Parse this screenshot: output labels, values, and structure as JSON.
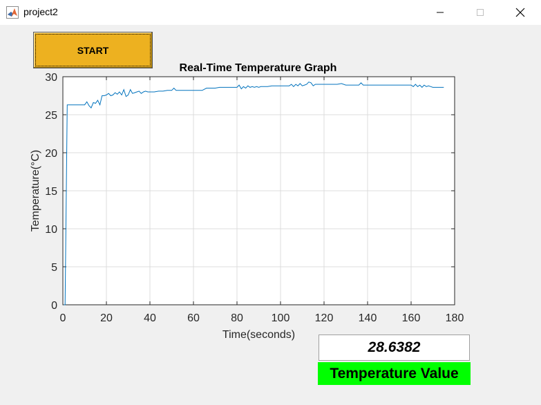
{
  "window": {
    "title": "project2"
  },
  "controls": {
    "start_label": "START"
  },
  "display": {
    "value": "28.6382",
    "label": "Temperature Value"
  },
  "colors": {
    "button": "#edb120",
    "label_bg": "#00ff00",
    "line": "#0072bd"
  },
  "chart_data": {
    "type": "line",
    "title": "Real-Time Temperature Graph",
    "xlabel": "Time(seconds)",
    "ylabel": "Temperature(°C)",
    "xlim": [
      0,
      180
    ],
    "ylim": [
      0,
      30
    ],
    "xticks": [
      0,
      20,
      40,
      60,
      80,
      100,
      120,
      140,
      160,
      180
    ],
    "yticks": [
      0,
      5,
      10,
      15,
      20,
      25,
      30
    ],
    "grid": true,
    "series": [
      {
        "x": [
          0.5,
          1,
          2,
          4,
          6,
          8,
          10,
          11,
          12,
          13,
          14,
          15,
          16,
          17,
          18,
          19,
          20,
          21,
          22,
          23,
          24,
          25,
          26,
          27,
          28,
          29,
          30,
          31,
          32,
          33,
          34,
          35,
          36,
          37,
          38,
          39,
          40,
          42,
          44,
          46,
          48,
          50,
          51,
          52,
          54,
          56,
          58,
          60,
          62,
          64,
          66,
          68,
          70,
          72,
          74,
          76,
          78,
          80,
          81,
          82,
          83,
          84,
          85,
          86,
          87,
          88,
          89,
          90,
          91,
          92,
          94,
          96,
          98,
          100,
          102,
          104,
          105,
          106,
          107,
          108,
          109,
          110,
          111,
          112,
          113,
          114,
          115,
          116,
          118,
          120,
          122,
          124,
          126,
          128,
          130,
          132,
          134,
          136,
          137,
          138,
          140,
          142,
          144,
          146,
          148,
          150,
          152,
          154,
          156,
          158,
          160,
          161,
          162,
          163,
          164,
          165,
          166,
          167,
          168,
          169,
          170,
          172,
          175
        ],
        "y": [
          0,
          0,
          26.3,
          26.3,
          26.3,
          26.3,
          26.3,
          26.7,
          26.2,
          25.9,
          26.6,
          26.5,
          26.9,
          26.3,
          27.5,
          27.5,
          27.6,
          27.8,
          27.5,
          27.6,
          27.9,
          27.7,
          28.0,
          27.6,
          28.3,
          27.4,
          27.6,
          28.3,
          27.8,
          27.9,
          28.0,
          28.1,
          27.8,
          28.0,
          28.1,
          28.0,
          28.0,
          28.0,
          28.1,
          28.1,
          28.2,
          28.2,
          28.5,
          28.2,
          28.2,
          28.2,
          28.2,
          28.2,
          28.2,
          28.2,
          28.5,
          28.5,
          28.5,
          28.6,
          28.6,
          28.6,
          28.6,
          28.6,
          28.9,
          28.4,
          28.7,
          28.5,
          28.8,
          28.6,
          28.7,
          28.6,
          28.7,
          28.6,
          28.7,
          28.7,
          28.7,
          28.8,
          28.8,
          28.8,
          28.8,
          28.8,
          29.0,
          28.7,
          29.0,
          28.8,
          29.1,
          28.8,
          28.9,
          29.0,
          29.3,
          29.2,
          28.8,
          29.0,
          29.0,
          29.0,
          29.0,
          29.0,
          29.0,
          29.1,
          28.9,
          28.9,
          28.9,
          28.9,
          29.2,
          28.9,
          28.9,
          28.9,
          28.9,
          28.9,
          28.9,
          28.9,
          28.9,
          28.9,
          28.9,
          28.9,
          28.9,
          28.7,
          29.0,
          28.7,
          28.9,
          28.6,
          28.9,
          28.7,
          28.8,
          28.7,
          28.6,
          28.6,
          28.6
        ]
      }
    ]
  }
}
